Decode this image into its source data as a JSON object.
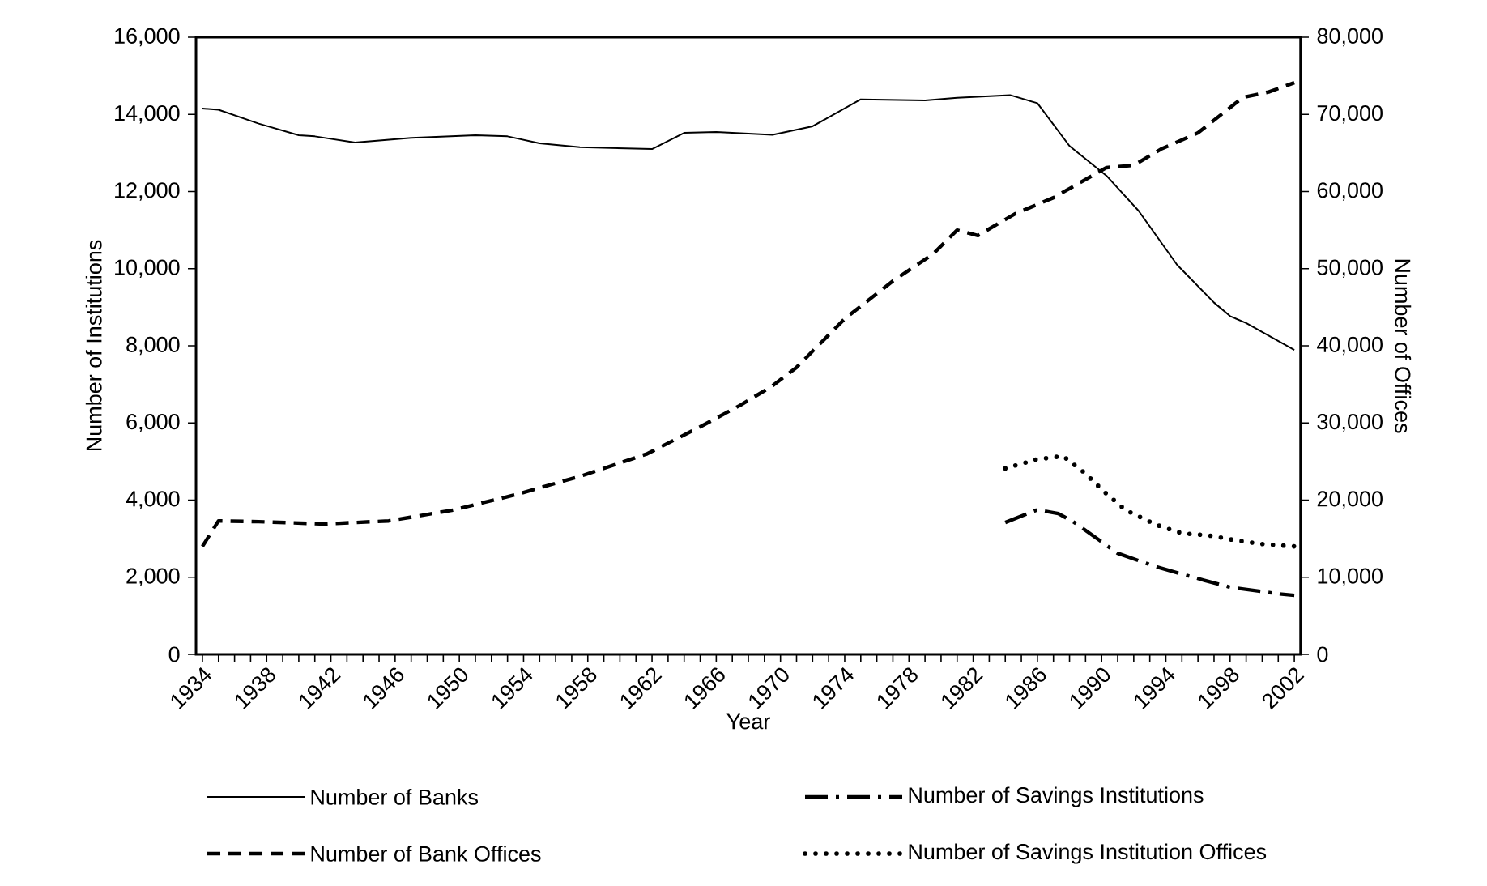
{
  "chart_data": {
    "type": "line",
    "xlabel": "Year",
    "ylabel": "Number of Institutions",
    "y2label": "Number of Offices",
    "legend": "bottom",
    "xlim": [
      1933.6,
      2002.4
    ],
    "xticks": [
      1934,
      {
        "value": 1935,
        "label": null
      },
      {
        "value": 1936,
        "label": null
      },
      {
        "value": 1937,
        "label": null
      },
      1938,
      {
        "value": 1939,
        "label": null
      },
      {
        "value": 1940,
        "label": null
      },
      {
        "value": 1941,
        "label": null
      },
      1942,
      {
        "value": 1943,
        "label": null
      },
      {
        "value": 1944,
        "label": null
      },
      {
        "value": 1945,
        "label": null
      },
      1946,
      {
        "value": 1947,
        "label": null
      },
      {
        "value": 1948,
        "label": null
      },
      {
        "value": 1949,
        "label": null
      },
      1950,
      {
        "value": 1951,
        "label": null
      },
      {
        "value": 1952,
        "label": null
      },
      {
        "value": 1953,
        "label": null
      },
      1954,
      {
        "value": 1955,
        "label": null
      },
      {
        "value": 1956,
        "label": null
      },
      {
        "value": 1957,
        "label": null
      },
      1958,
      {
        "value": 1959,
        "label": null
      },
      {
        "value": 1960,
        "label": null
      },
      {
        "value": 1961,
        "label": null
      },
      1962,
      {
        "value": 1963,
        "label": null
      },
      {
        "value": 1964,
        "label": null
      },
      {
        "value": 1965,
        "label": null
      },
      1966,
      {
        "value": 1967,
        "label": null
      },
      {
        "value": 1968,
        "label": null
      },
      {
        "value": 1969,
        "label": null
      },
      1970,
      {
        "value": 1971,
        "label": null
      },
      {
        "value": 1972,
        "label": null
      },
      {
        "value": 1973,
        "label": null
      },
      1974,
      {
        "value": 1975,
        "label": null
      },
      {
        "value": 1976,
        "label": null
      },
      {
        "value": 1977,
        "label": null
      },
      1978,
      {
        "value": 1979,
        "label": null
      },
      {
        "value": 1980,
        "label": null
      },
      {
        "value": 1981,
        "label": null
      },
      1982,
      {
        "value": 1983,
        "label": null
      },
      {
        "value": 1984,
        "label": null
      },
      {
        "value": 1985,
        "label": null
      },
      1986,
      {
        "value": 1987,
        "label": null
      },
      {
        "value": 1988,
        "label": null
      },
      {
        "value": 1989,
        "label": null
      },
      1990,
      {
        "value": 1991,
        "label": null
      },
      {
        "value": 1992,
        "label": null
      },
      {
        "value": 1993,
        "label": null
      },
      1994,
      {
        "value": 1995,
        "label": null
      },
      {
        "value": 1996,
        "label": null
      },
      {
        "value": 1997,
        "label": null
      },
      1998,
      {
        "value": 1999,
        "label": null
      },
      {
        "value": 2000,
        "label": null
      },
      {
        "value": 2001,
        "label": null
      },
      2002
    ],
    "ylim": [
      0,
      16000
    ],
    "yticks": [
      0,
      {
        "value": 2000,
        "label": "2,000"
      },
      {
        "value": 4000,
        "label": "4,000"
      },
      {
        "value": 6000,
        "label": "6,000"
      },
      {
        "value": 8000,
        "label": "8,000"
      },
      {
        "value": 10000,
        "label": "10,000"
      },
      {
        "value": 12000,
        "label": "12,000"
      },
      {
        "value": 14000,
        "label": "14,000"
      },
      {
        "value": 16000,
        "label": "16,000"
      }
    ],
    "y2lim": [
      0,
      80000
    ],
    "y2ticks": [
      0,
      {
        "value": 10000,
        "label": "10,000"
      },
      {
        "value": 20000,
        "label": "20,000"
      },
      {
        "value": 30000,
        "label": "30,000"
      },
      {
        "value": 40000,
        "label": "40,000"
      },
      {
        "value": 50000,
        "label": "50,000"
      },
      {
        "value": 60000,
        "label": "60,000"
      },
      {
        "value": 70000,
        "label": "70,000"
      },
      {
        "value": 80000,
        "label": "80,000"
      }
    ],
    "series": [
      {
        "name": "Number of Banks",
        "color": "#000000",
        "line_style": "solid",
        "x": [
          1934,
          1935,
          1937.5,
          1940,
          1941,
          1943.5,
          1947,
          1951,
          1953,
          1955,
          1957.5,
          1962,
          1964,
          1966,
          1969.5,
          1972,
          1975,
          1979,
          1981,
          1984.3,
          1986,
          1988,
          1990.3,
          1992.3,
          1994.7,
          1997,
          1998,
          1999,
          2002
        ],
        "values": [
          14150,
          14120,
          13760,
          13460,
          13430,
          13270,
          13390,
          13460,
          13430,
          13250,
          13150,
          13100,
          13520,
          13540,
          13470,
          13690,
          14390,
          14360,
          14430,
          14500,
          14290,
          13180,
          12410,
          11500,
          10100,
          9120,
          8770,
          8590,
          7890
        ]
      },
      {
        "name": "Number of Savings Institutions",
        "color": "#000000",
        "line_style": "dashdot",
        "x": [
          1984,
          1986,
          1987.3,
          1988.3,
          1991,
          1993.4,
          1996.4,
          1998,
          2001,
          2002
        ],
        "values": [
          3420,
          3750,
          3650,
          3420,
          2620,
          2270,
          1920,
          1740,
          1570,
          1530
        ]
      },
      {
        "name": "Number of Bank Offices",
        "color": "#000000",
        "line_style": "dashed",
        "axis": "y2",
        "x": [
          1934,
          1935,
          1937.5,
          1941.6,
          1945.6,
          1949.6,
          1953.7,
          1957.7,
          1961.7,
          1965,
          1967.5,
          1969.5,
          1971,
          1974,
          1977,
          1979.5,
          1981,
          1982.3,
          1984.6,
          1987,
          1990.3,
          1992,
          1993.7,
          1996,
          1998.8,
          2000.4,
          2002
        ],
        "values": [
          14000,
          17300,
          17200,
          16900,
          17300,
          18700,
          20800,
          23200,
          26000,
          29500,
          32300,
          34800,
          37200,
          43500,
          48400,
          51900,
          55000,
          54300,
          57100,
          59200,
          63100,
          63400,
          65500,
          67600,
          72200,
          72900,
          74100
        ]
      },
      {
        "name": "Number of Savings Institution Offices",
        "color": "#000000",
        "line_style": "dotted",
        "axis": "y2",
        "x": [
          1984,
          1986,
          1987.6,
          1988.9,
          1990.2,
          1991.5,
          1993.4,
          1995,
          1996.7,
          1998.3,
          2000,
          2002
        ],
        "values": [
          24100,
          25300,
          25700,
          23600,
          21000,
          18700,
          16800,
          15700,
          15400,
          14800,
          14300,
          14000
        ]
      }
    ]
  }
}
